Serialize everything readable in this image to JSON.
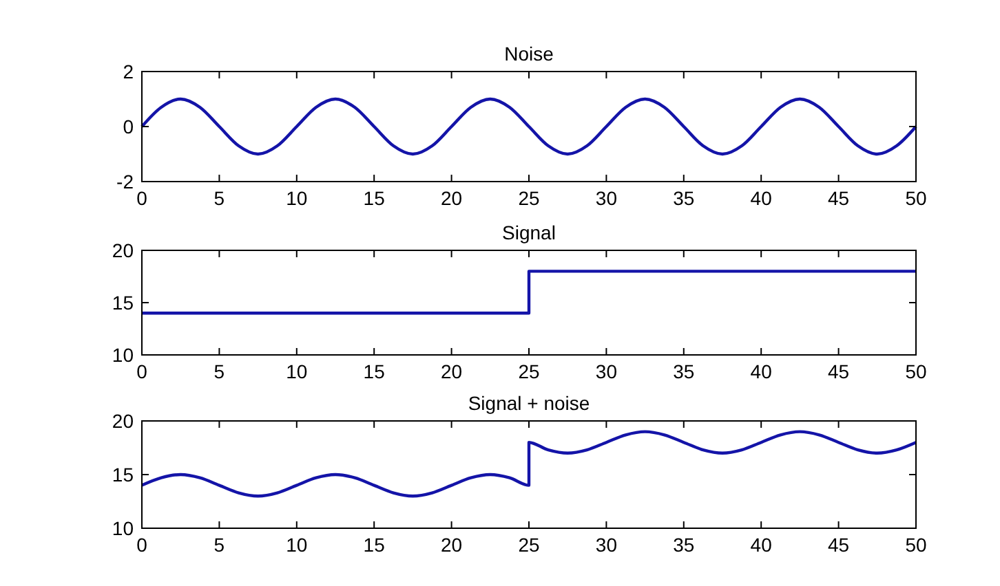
{
  "chart_data": [
    {
      "type": "line",
      "title": "Noise",
      "x": [
        0,
        1.25,
        2.5,
        3.75,
        5,
        6.25,
        7.5,
        8.75,
        10,
        11.25,
        12.5,
        13.75,
        15,
        16.25,
        17.5,
        18.75,
        20,
        21.25,
        22.5,
        23.75,
        25,
        26.25,
        27.5,
        28.75,
        30,
        31.25,
        32.5,
        33.75,
        35,
        36.25,
        37.5,
        38.75,
        40,
        41.25,
        42.5,
        43.75,
        45,
        46.25,
        47.5,
        48.75,
        50
      ],
      "series": [
        {
          "color": "#1414a8",
          "values": [
            0,
            0.7,
            1,
            0.7,
            0,
            -0.7,
            -1,
            -0.7,
            0,
            0.7,
            1,
            0.7,
            0,
            -0.7,
            -1,
            -0.7,
            0,
            0.7,
            1,
            0.7,
            0,
            -0.7,
            -1,
            -0.7,
            0,
            0.7,
            1,
            0.7,
            0,
            -0.7,
            -1,
            -0.7,
            0,
            0.7,
            1,
            0.7,
            0,
            -0.7,
            -1,
            -0.7,
            0
          ]
        }
      ],
      "xlim": [
        0,
        50
      ],
      "xticks": [
        0,
        5,
        10,
        15,
        20,
        25,
        30,
        35,
        40,
        45,
        50
      ],
      "ylim": [
        -2,
        2
      ],
      "yticks": [
        -2,
        0,
        2
      ],
      "grid": false,
      "line_style": "solid"
    },
    {
      "type": "line",
      "title": "Signal",
      "x": [
        0,
        25,
        25,
        50
      ],
      "series": [
        {
          "color": "#1414a8",
          "values": [
            14,
            14,
            18,
            18
          ]
        }
      ],
      "xlim": [
        0,
        50
      ],
      "xticks": [
        0,
        5,
        10,
        15,
        20,
        25,
        30,
        35,
        40,
        45,
        50
      ],
      "ylim": [
        10,
        20
      ],
      "yticks": [
        10,
        15,
        20
      ],
      "grid": false,
      "line_style": "solid"
    },
    {
      "type": "line",
      "title": "Signal + noise",
      "x": [
        0,
        1.25,
        2.5,
        3.75,
        5,
        6.25,
        7.5,
        8.75,
        10,
        11.25,
        12.5,
        13.75,
        15,
        16.25,
        17.5,
        18.75,
        20,
        21.25,
        22.5,
        23.75,
        25,
        25,
        26.25,
        27.5,
        28.75,
        30,
        31.25,
        32.5,
        33.75,
        35,
        36.25,
        37.5,
        38.75,
        40,
        41.25,
        42.5,
        43.75,
        45,
        46.25,
        47.5,
        48.75,
        50
      ],
      "series": [
        {
          "color": "#1414a8",
          "values": [
            14,
            14.7,
            15,
            14.7,
            14,
            13.3,
            13,
            13.3,
            14,
            14.7,
            15,
            14.7,
            14,
            13.3,
            13,
            13.3,
            14,
            14.7,
            15,
            14.7,
            14,
            18,
            17.3,
            17,
            17.3,
            18,
            18.7,
            19,
            18.7,
            18,
            17.3,
            17,
            17.3,
            18,
            18.7,
            19,
            18.7,
            18,
            17.3,
            17,
            17.3,
            18
          ]
        }
      ],
      "xlim": [
        0,
        50
      ],
      "xticks": [
        0,
        5,
        10,
        15,
        20,
        25,
        30,
        35,
        40,
        45,
        50
      ],
      "ylim": [
        10,
        20
      ],
      "yticks": [
        10,
        15,
        20
      ],
      "grid": false,
      "line_style": "solid"
    }
  ]
}
